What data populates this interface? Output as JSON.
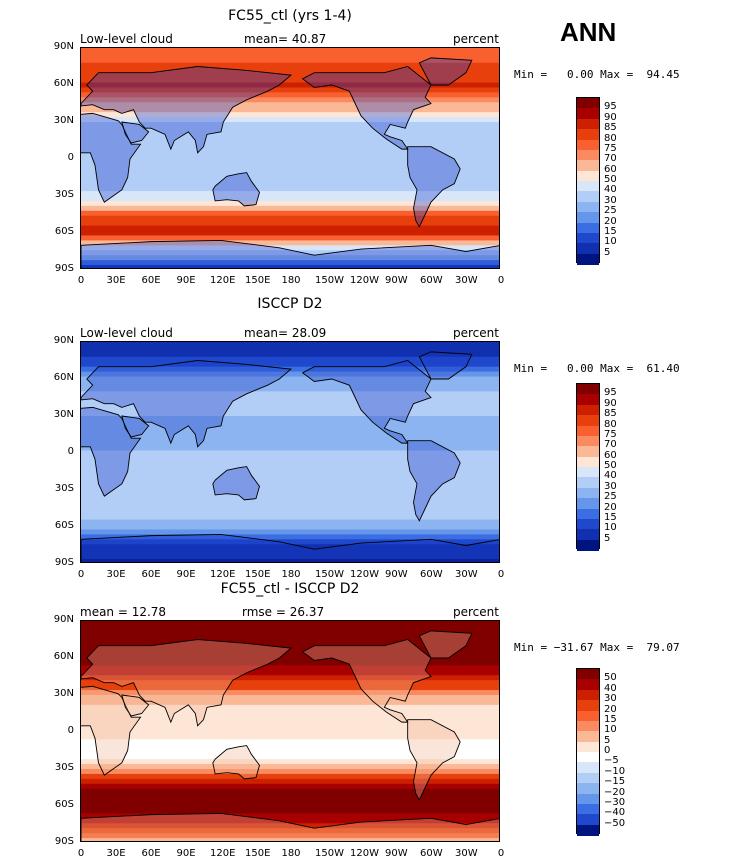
{
  "season_label": "ANN",
  "axes": {
    "lon_labels": [
      "0",
      "30E",
      "60E",
      "90E",
      "120E",
      "150E",
      "180",
      "150W",
      "120W",
      "90W",
      "60W",
      "30W",
      "0"
    ],
    "lat_labels": [
      "90N",
      "60N",
      "30N",
      "0",
      "30S",
      "60S",
      "90S"
    ]
  },
  "chart_data": [
    {
      "type": "heatmap",
      "title": "FC55_ctl (yrs 1-4)",
      "left_text": "Low-level cloud",
      "center_text": "mean=  40.87",
      "right_text": "percent",
      "minmax_text": "Min =   0.00 Max =  94.45",
      "min": 0.0,
      "max": 94.45,
      "mean": 40.87,
      "colorbar_labels": [
        "95",
        "90",
        "85",
        "80",
        "75",
        "70",
        "60",
        "50",
        "40",
        "30",
        "25",
        "20",
        "15",
        "10",
        "5"
      ],
      "colorbar_colors": [
        "#800000",
        "#a80000",
        "#cc2000",
        "#e8400c",
        "#f86030",
        "#fa8a60",
        "#fbb896",
        "#fde6d6",
        "#d8e6fa",
        "#b2cdf6",
        "#8cb4f0",
        "#6696ea",
        "#3a6ee2",
        "#1f48cc",
        "#1030b0",
        "#001480"
      ],
      "zonal_profile": {
        "lat": [
          90,
          75,
          60,
          45,
          30,
          15,
          0,
          -15,
          -30,
          -45,
          -60,
          -75,
          -90
        ],
        "value": [
          75,
          82,
          85,
          70,
          40,
          30,
          35,
          30,
          45,
          82,
          88,
          40,
          5
        ]
      }
    },
    {
      "type": "heatmap",
      "title": "ISCCP D2",
      "left_text": "Low-level cloud",
      "center_text": "mean=  28.09",
      "right_text": "percent",
      "minmax_text": "Min =   0.00 Max =  61.40",
      "min": 0.0,
      "max": 61.4,
      "mean": 28.09,
      "colorbar_labels": [
        "95",
        "90",
        "85",
        "80",
        "75",
        "70",
        "60",
        "50",
        "40",
        "30",
        "25",
        "20",
        "15",
        "10",
        "5"
      ],
      "colorbar_colors": [
        "#800000",
        "#a80000",
        "#cc2000",
        "#e8400c",
        "#f86030",
        "#fa8a60",
        "#fbb896",
        "#fde6d6",
        "#d8e6fa",
        "#b2cdf6",
        "#8cb4f0",
        "#6696ea",
        "#3a6ee2",
        "#1f48cc",
        "#1030b0",
        "#001480"
      ],
      "zonal_profile": {
        "lat": [
          90,
          75,
          60,
          45,
          30,
          15,
          0,
          -15,
          -30,
          -45,
          -60,
          -75,
          -90
        ],
        "value": [
          5,
          12,
          25,
          32,
          30,
          26,
          30,
          38,
          38,
          32,
          28,
          10,
          3
        ]
      }
    },
    {
      "type": "heatmap",
      "title": "FC55_ctl - ISCCP D2",
      "left_text": "mean =  12.78",
      "center_text": "rmse =  26.37",
      "right_text": "percent",
      "minmax_text": "Min = −31.67 Max =  79.07",
      "min": -31.67,
      "max": 79.07,
      "mean": 12.78,
      "rmse": 26.37,
      "colorbar_labels": [
        "50",
        "40",
        "30",
        "20",
        "15",
        "10",
        "5",
        "0",
        "−5",
        "−10",
        "−15",
        "−20",
        "−30",
        "−40",
        "−50"
      ],
      "colorbar_colors": [
        "#800000",
        "#a80000",
        "#cc2000",
        "#e8400c",
        "#f86030",
        "#fa8a60",
        "#fbb896",
        "#fde6d6",
        "#ffffff",
        "#d8e6fa",
        "#b2cdf6",
        "#8cb4f0",
        "#6696ea",
        "#3a6ee2",
        "#1f48cc",
        "#001480"
      ],
      "zonal_profile": {
        "lat": [
          90,
          75,
          60,
          45,
          30,
          15,
          0,
          -15,
          -30,
          -45,
          -60,
          -75,
          -90
        ],
        "value": [
          60,
          65,
          58,
          38,
          10,
          0,
          2,
          -5,
          8,
          50,
          60,
          40,
          5
        ]
      }
    }
  ]
}
